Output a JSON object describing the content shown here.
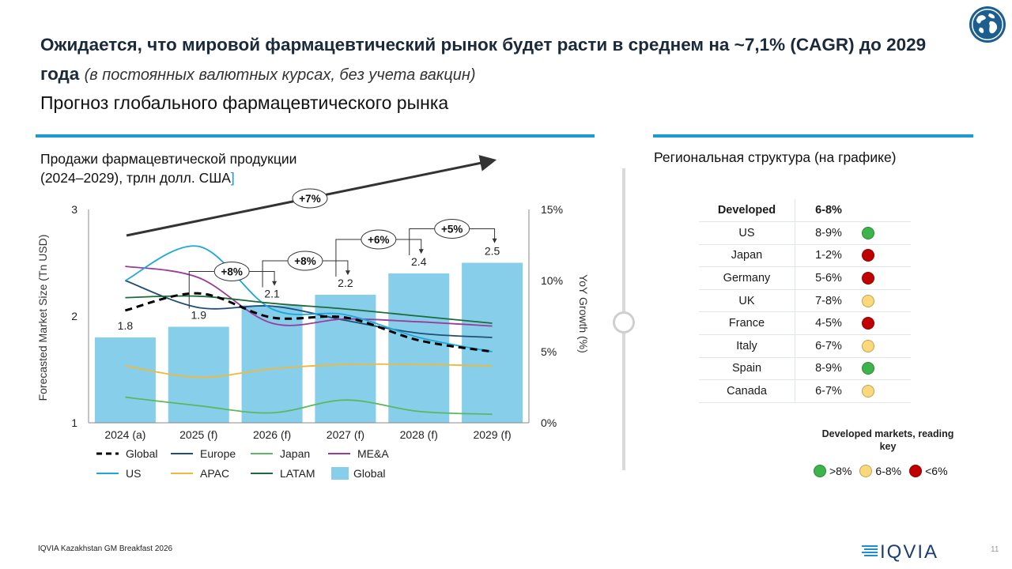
{
  "header": {
    "title_main": "Ожидается, что мировой фармацевтический рынок будет расти в среднем на ~7,1% (CAGR) до 2029 года",
    "title_note": "(в постоянных валютных курсах, без учета вакцин)",
    "subtitle": "Прогноз глобального фармацевтического рынка"
  },
  "left_panel": {
    "heading_line1": "Продажи фармацевтической продукции",
    "heading_line2": "(2024–2029), трлн долл. США",
    "heading_bracket": "]"
  },
  "right_panel": {
    "heading": "Региональная структура (на графике)",
    "table_header": {
      "region": "Developed",
      "growth": "6-8%"
    },
    "rows": [
      {
        "region": "US",
        "growth": "8-9%",
        "status": "green"
      },
      {
        "region": "Japan",
        "growth": "1-2%",
        "status": "red"
      },
      {
        "region": "Germany",
        "growth": "5-6%",
        "status": "red"
      },
      {
        "region": "UK",
        "growth": "7-8%",
        "status": "yellow"
      },
      {
        "region": "France",
        "growth": "4-5%",
        "status": "red"
      },
      {
        "region": "Italy",
        "growth": "6-7%",
        "status": "yellow"
      },
      {
        "region": "Spain",
        "growth": "8-9%",
        "status": "green"
      },
      {
        "region": "Canada",
        "growth": "6-7%",
        "status": "yellow"
      }
    ],
    "key_title": "Developed markets, reading key",
    "key": [
      {
        "label": ">8%",
        "status": "green"
      },
      {
        "label": "6-8%",
        "status": "yellow"
      },
      {
        "label": "<6%",
        "status": "red"
      }
    ],
    "status_colors": {
      "green": "#3cb44b",
      "yellow": "#fbd87a",
      "red": "#c00000"
    }
  },
  "footer": {
    "source": "IQVIA Kazakhstan GM  Breakfast 2026",
    "page": "11",
    "logo_text": "IQVIA"
  },
  "chart_data": {
    "type": "bar",
    "categories": [
      "2024 (a)",
      "2025 (f)",
      "2026 (f)",
      "2027 (f)",
      "2028 (f)",
      "2029 (f)"
    ],
    "bar_values": [
      1.8,
      1.9,
      2.1,
      2.2,
      2.4,
      2.5
    ],
    "bar_labels": [
      "1.8",
      "1.9",
      "2.1",
      "2.2",
      "2.4",
      "2.5"
    ],
    "bar_series_name": "Global",
    "ylabel_left": "Forecasted Market Size  (Tn USD)",
    "ylabel_right": "YoY Growth (%)",
    "ylim_left": [
      1,
      3
    ],
    "yticks_left": [
      1,
      2,
      3
    ],
    "ylim_right": [
      0,
      15
    ],
    "yticks_right": [
      "0%",
      "5%",
      "10%",
      "15%"
    ],
    "growth_series": [
      {
        "name": "Global",
        "style": "dashed",
        "color": "#000000",
        "values": [
          7.9,
          9.1,
          7.4,
          7.4,
          5.8,
          5.0
        ]
      },
      {
        "name": "Europe",
        "style": "solid",
        "color": "#1f4e79",
        "values": [
          10.0,
          8.1,
          8.2,
          7.2,
          6.3,
          6.0
        ]
      },
      {
        "name": "Japan",
        "style": "solid",
        "color": "#5cb85c",
        "values": [
          1.8,
          1.2,
          0.7,
          1.6,
          0.8,
          0.6
        ]
      },
      {
        "name": "ME&A",
        "style": "solid",
        "color": "#9b3c9a",
        "values": [
          11.0,
          10.2,
          7.0,
          7.3,
          7.1,
          6.8
        ]
      },
      {
        "name": "US",
        "style": "solid",
        "color": "#1aa8d8",
        "values": [
          10.0,
          12.4,
          8.0,
          7.6,
          6.0,
          5.0
        ]
      },
      {
        "name": "APAC",
        "style": "solid",
        "color": "#f0b83c",
        "values": [
          4.0,
          3.2,
          3.8,
          4.1,
          4.1,
          4.0
        ]
      },
      {
        "name": "LATAM",
        "style": "solid",
        "color": "#1e6b3a",
        "values": [
          8.8,
          8.9,
          8.4,
          8.0,
          7.5,
          7.0
        ]
      }
    ],
    "growth_trend_label": "+7%",
    "annotations": [
      {
        "label": "+8%",
        "from": 1,
        "to": 2
      },
      {
        "label": "+8%",
        "from": 2,
        "to": 3
      },
      {
        "label": "+6%",
        "from": 3,
        "to": 4
      },
      {
        "label": "+5%",
        "from": 4,
        "to": 5
      }
    ],
    "legend": [
      {
        "label": "Global",
        "kind": "dashed",
        "color": "#000000"
      },
      {
        "label": "Europe",
        "kind": "line",
        "color": "#1f4e79"
      },
      {
        "label": "Japan",
        "kind": "line",
        "color": "#5cb85c"
      },
      {
        "label": "ME&A",
        "kind": "line",
        "color": "#9b3c9a"
      },
      {
        "label": "US",
        "kind": "line",
        "color": "#1aa8d8"
      },
      {
        "label": "APAC",
        "kind": "line",
        "color": "#f0b83c"
      },
      {
        "label": "LATAM",
        "kind": "line",
        "color": "#1e6b3a"
      },
      {
        "label": "Global",
        "kind": "bar",
        "color": "#87ceeb"
      }
    ]
  }
}
